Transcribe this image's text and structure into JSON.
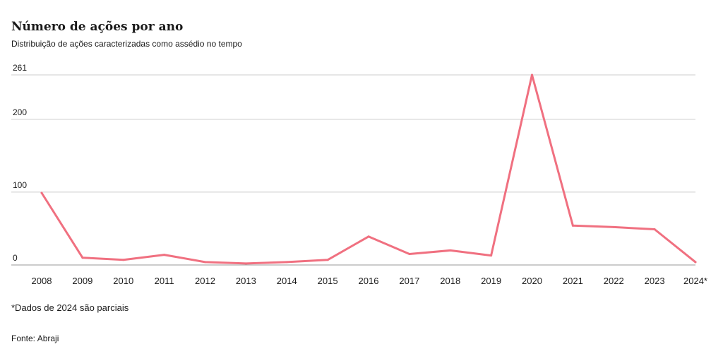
{
  "header": {
    "title": "Número de ações por ano",
    "subtitle": "Distribuição de ações caracterizadas como assédio no tempo"
  },
  "footer": {
    "note": "*Dados de 2024 são parciais",
    "source": "Fonte: Abraji"
  },
  "colors": {
    "line": "#f07080",
    "grid": "#cccccc",
    "baseline": "#999999",
    "text": "#1a1a1a"
  },
  "chart_data": {
    "type": "line",
    "title": "Número de ações por ano",
    "subtitle": "Distribuição de ações caracterizadas como assédio no tempo",
    "categories": [
      "2008",
      "2009",
      "2010",
      "2011",
      "2012",
      "2013",
      "2014",
      "2015",
      "2016",
      "2017",
      "2018",
      "2019",
      "2020",
      "2021",
      "2022",
      "2023",
      "2024*"
    ],
    "values": [
      99,
      10,
      7,
      14,
      4,
      2,
      4,
      7,
      39,
      15,
      20,
      13,
      261,
      54,
      52,
      49,
      4
    ],
    "yticks": [
      0,
      100,
      200,
      261
    ],
    "ylim": [
      0,
      261
    ],
    "xlabel": "",
    "ylabel": "",
    "grid": true
  }
}
